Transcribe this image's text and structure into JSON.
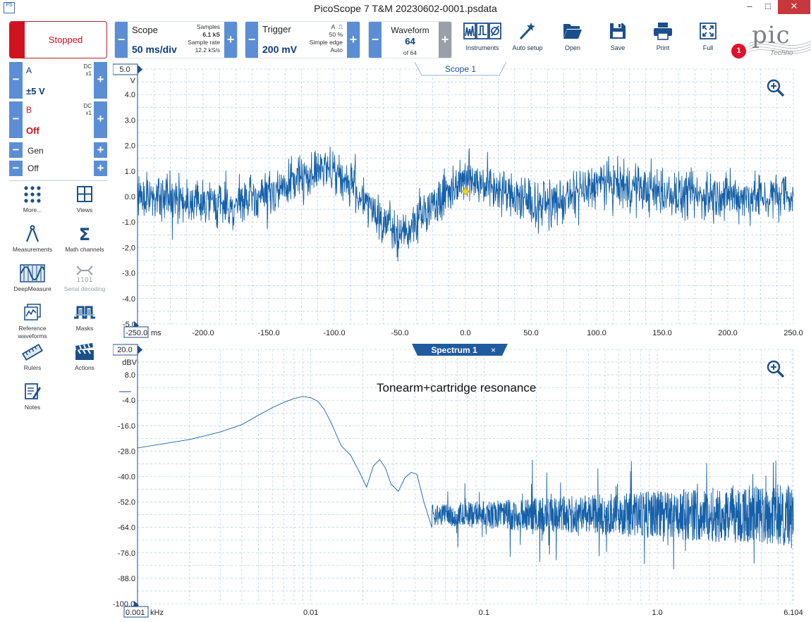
{
  "window": {
    "app_icon_text": "PS",
    "title": "PicoScope 7 T&M 20230602-0001.psdata",
    "minimize": "–",
    "maximize": "□",
    "close": "✕"
  },
  "acquisition": {
    "state_label": "Stopped"
  },
  "channels": [
    {
      "name": "A",
      "coupling": "DC",
      "probe": "x1",
      "range": "±5 V",
      "color": "#0b3c7a"
    },
    {
      "name": "B",
      "coupling": "DC",
      "probe": "x1",
      "range": "Off",
      "color": "#c8101e"
    }
  ],
  "generator": {
    "label": "Gen",
    "state": "Off"
  },
  "tools": [
    {
      "label": "More...",
      "icon": "grid-dots-icon",
      "enabled": true
    },
    {
      "label": "Views",
      "icon": "views-grid-icon",
      "enabled": true
    },
    {
      "label": "Measurements",
      "icon": "compass-icon",
      "enabled": true
    },
    {
      "label": "Math channels",
      "icon": "sigma-icon",
      "enabled": true
    },
    {
      "label": "DeepMeasure",
      "icon": "deepmeasure-icon",
      "enabled": true
    },
    {
      "label": "Serial decoding",
      "icon": "serial-decoding-icon",
      "enabled": false
    },
    {
      "label": "Reference waveforms",
      "icon": "reference-waveforms-icon",
      "enabled": true
    },
    {
      "label": "Masks",
      "icon": "masks-icon",
      "enabled": true
    },
    {
      "label": "Rulers",
      "icon": "rulers-icon",
      "enabled": true
    },
    {
      "label": "Actions",
      "icon": "clapperboard-icon",
      "enabled": true
    },
    {
      "label": "Notes",
      "icon": "notes-icon",
      "enabled": true
    }
  ],
  "toolbar": {
    "scope": {
      "title": "Scope",
      "timebase": "50 ms/div",
      "samples_label": "Samples",
      "samples": "6.1 kS",
      "rate_label": "Sample rate",
      "rate": "12.2 kS/s"
    },
    "trigger": {
      "title": "Trigger",
      "level": "200 mV",
      "source": "A",
      "position": "50 %",
      "type": "Simple edge",
      "mode": "Auto"
    },
    "waveform": {
      "title": "Waveform",
      "current": "64",
      "total": "of 64"
    },
    "buttons": [
      {
        "label": "Instruments",
        "icon": "instruments-icon"
      },
      {
        "label": "Auto setup",
        "icon": "auto-setup-wand-icon"
      },
      {
        "label": "Open",
        "icon": "folder-open-icon"
      },
      {
        "label": "Save",
        "icon": "floppy-disk-icon"
      },
      {
        "label": "Print",
        "icon": "printer-icon"
      },
      {
        "label": "Full",
        "icon": "fullscreen-icon"
      }
    ],
    "notification_count": "1",
    "logo_text": "pic",
    "logo_sub": "Techno"
  },
  "colors": {
    "accent": "#5b8ed4",
    "trace": "#1560a8",
    "stopped": "#d2121f",
    "grid": "#a6c4e0",
    "trigger_marker": "#f2d21c"
  },
  "scope_view": {
    "tab_label": "Scope 1",
    "y_unit": "V",
    "y_top_label": "5.0",
    "y_bottom_label": "-5.0",
    "x_start_label": "-250.0",
    "x_unit": "ms",
    "chart_data": {
      "type": "line",
      "title": "",
      "xlabel": "ms",
      "ylabel": "V",
      "xlim": [
        -250,
        250
      ],
      "ylim": [
        -5,
        5
      ],
      "grid": true,
      "yticks": [
        "4.0",
        "3.0",
        "2.0",
        "1.0",
        "0.0",
        "-1.0",
        "-2.0",
        "-3.0",
        "-4.0"
      ],
      "xticks": [
        "-200.0",
        "-150.0",
        "-100.0",
        "-50.0",
        "0.0",
        "50.0",
        "100.0",
        "150.0",
        "200.0",
        "250.0"
      ],
      "series": [
        {
          "envelope_x": [
            -250,
            -225,
            -200,
            -175,
            -150,
            -125,
            -100,
            -75,
            -50,
            -25,
            0,
            25,
            50,
            75,
            100,
            125,
            150,
            175,
            200,
            225,
            250
          ],
          "envelope_mean": [
            0.0,
            0.0,
            -0.25,
            -0.35,
            0.1,
            0.8,
            1.1,
            -0.3,
            -1.6,
            -0.3,
            0.8,
            0.3,
            -0.35,
            -0.2,
            0.5,
            0.4,
            0.1,
            0.0,
            0.0,
            0.0,
            0.0
          ],
          "noise_amplitude_v": 0.8
        }
      ],
      "trigger_point": {
        "x": 0,
        "y": 0.2
      }
    }
  },
  "spectrum_view": {
    "tab_label": "Spectrum 1",
    "tab_close": "×",
    "y_unit": "dBV",
    "y_top_label": "20.0",
    "y_bottom_label": "-100.0",
    "x_start_label": "0.001",
    "x_unit": "kHz",
    "annotation": "Tonearm+cartridge resonance",
    "chart_data": {
      "type": "line",
      "title": "",
      "xlabel": "kHz",
      "ylabel": "dBV",
      "xscale": "log",
      "xlim": [
        0.001,
        6.104
      ],
      "ylim": [
        -100,
        20
      ],
      "grid": true,
      "yticks": [
        "8.0",
        "-4.0",
        "-16.0",
        "-28.0",
        "-40.0",
        "-52.0",
        "-64.0",
        "-76.0",
        "-88.0"
      ],
      "xticks": [
        "0.01",
        "0.1",
        "1.0",
        "6.104"
      ],
      "series": [
        {
          "x": [
            0.001,
            0.002,
            0.003,
            0.004,
            0.005,
            0.006,
            0.007,
            0.008,
            0.009,
            0.01,
            0.011,
            0.012,
            0.013,
            0.015,
            0.017,
            0.019,
            0.021,
            0.023,
            0.025,
            0.027,
            0.029,
            0.032,
            0.035,
            0.038,
            0.041,
            0.045,
            0.05
          ],
          "y": [
            -26.5,
            -22.5,
            -19,
            -15.5,
            -11,
            -7.5,
            -5,
            -3.2,
            -2.2,
            -2.8,
            -4.5,
            -8.5,
            -14,
            -25.5,
            -30,
            -37.5,
            -45,
            -35,
            -32,
            -36,
            -43.5,
            -47,
            -40.5,
            -38,
            -39,
            -52,
            -64
          ]
        }
      ],
      "noise_floor_db": -58,
      "noise_spread_db": 20
    }
  }
}
